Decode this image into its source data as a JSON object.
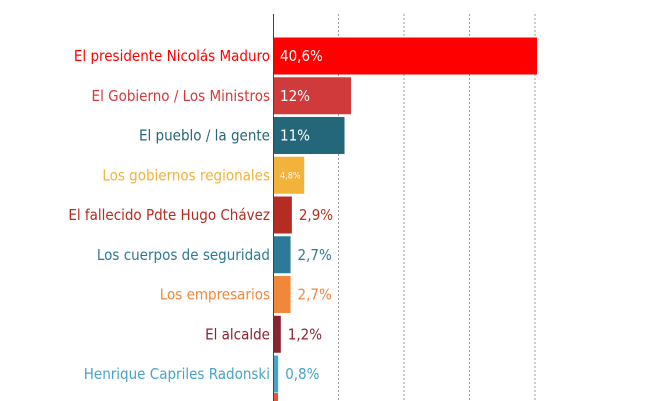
{
  "chart_data": {
    "type": "bar",
    "orientation": "horizontal",
    "categories": [
      "El presidente Nicolás Maduro",
      "El Gobierno / Los Ministros",
      "El pueblo / la gente",
      "Los gobiernos regionales",
      "El fallecido Pdte Hugo Chávez",
      "Los cuerpos de seguridad",
      "Los empresarios",
      "El alcalde",
      "Henrique Capriles Radonski"
    ],
    "values": [
      40.6,
      12,
      11,
      4.8,
      2.9,
      2.7,
      2.7,
      1.2,
      0.8
    ],
    "value_labels": [
      "40,6%",
      "12%",
      "11%",
      "4,8%",
      "2,9%",
      "2,7%",
      "2,7%",
      "1,2%",
      "0,8%"
    ],
    "colors": [
      "#ff0000",
      "#d13a3a",
      "#24677a",
      "#f3b23a",
      "#b52c22",
      "#2d7a98",
      "#f0873a",
      "#8a2230",
      "#4aa3c8"
    ],
    "label_position": [
      "inside",
      "inside",
      "inside",
      "inside",
      "outside",
      "outside",
      "outside",
      "outside",
      "outside"
    ],
    "xlim": [
      0,
      41
    ],
    "grid": true,
    "title": "",
    "xlabel": "",
    "ylabel": ""
  }
}
